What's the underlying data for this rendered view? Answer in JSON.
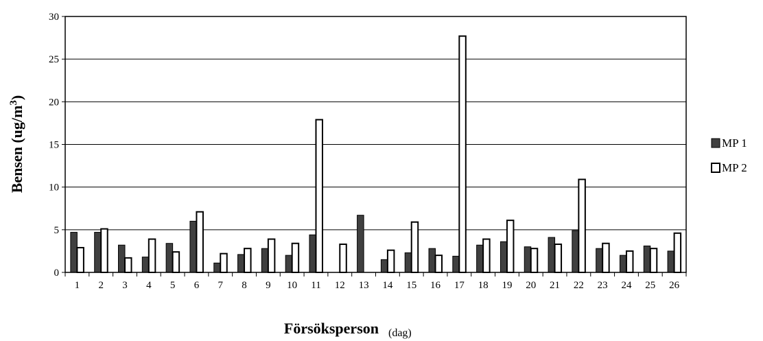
{
  "chart_data": {
    "type": "bar",
    "title": "",
    "xlabel": "Försöksperson",
    "xlabel_unit": "(dag)",
    "ylabel": "Bensen (ug/m",
    "ylabel_sup": "3",
    "ylabel_close": ")",
    "ylim": [
      0,
      30
    ],
    "yticks": [
      "0",
      "5",
      "10",
      "15",
      "20",
      "25",
      "30"
    ],
    "grid": true,
    "legend_position": "right",
    "categories": [
      "1",
      "2",
      "3",
      "4",
      "5",
      "6",
      "7",
      "8",
      "9",
      "10",
      "11",
      "12",
      "13",
      "14",
      "15",
      "16",
      "17",
      "18",
      "19",
      "20",
      "21",
      "22",
      "23",
      "24",
      "25",
      "26"
    ],
    "series": [
      {
        "name": "MP 1",
        "color": "#404040",
        "values": [
          4.7,
          4.7,
          3.2,
          1.8,
          3.4,
          6.0,
          1.1,
          2.1,
          2.8,
          2.0,
          4.4,
          0,
          6.7,
          1.5,
          2.3,
          2.8,
          1.9,
          3.2,
          3.6,
          3.0,
          4.1,
          4.9,
          2.8,
          2.0,
          3.1,
          2.5
        ]
      },
      {
        "name": "MP 2",
        "color": "#ffffff",
        "values": [
          2.9,
          5.1,
          1.7,
          3.9,
          2.4,
          7.1,
          2.2,
          2.8,
          3.9,
          3.4,
          17.9,
          3.3,
          0,
          2.6,
          5.9,
          2.0,
          27.7,
          3.9,
          6.1,
          2.8,
          3.3,
          10.9,
          3.4,
          2.5,
          2.8,
          4.6
        ]
      }
    ]
  }
}
